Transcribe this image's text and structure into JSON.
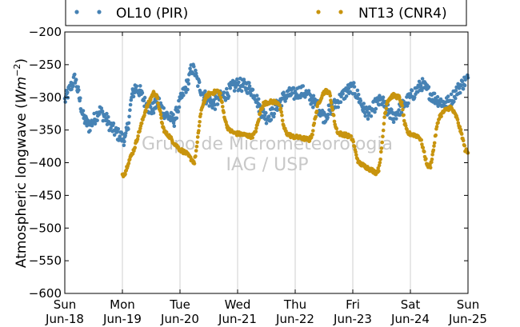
{
  "chart_data": {
    "type": "scatter",
    "ylabel": "Atmospheric longwave",
    "ylabel_unit_base": "W",
    "ylabel_unit_m": "m",
    "ylabel_unit_exp": "−2",
    "ylim": [
      -600,
      -200
    ],
    "yticks": [
      -600,
      -550,
      -500,
      -450,
      -400,
      -350,
      -300,
      -250,
      -200
    ],
    "ytick_labels": [
      "−600",
      "−550",
      "−500",
      "−450",
      "−400",
      "−350",
      "−300",
      "−250",
      "−200"
    ],
    "xlim": [
      0,
      7
    ],
    "xticks": [
      {
        "day": "Sun",
        "date": "Jun-18"
      },
      {
        "day": "Mon",
        "date": "Jun-19"
      },
      {
        "day": "Tue",
        "date": "Jun-20"
      },
      {
        "day": "Wed",
        "date": "Jun-21"
      },
      {
        "day": "Thu",
        "date": "Jun-22"
      },
      {
        "day": "Fri",
        "date": "Jun-23"
      },
      {
        "day": "Sat",
        "date": "Jun-24"
      },
      {
        "day": "Sun",
        "date": "Jun-25"
      }
    ],
    "grid": "vertical",
    "legend_position": "top",
    "watermark": [
      "Grupo de Micrometeorologia",
      "IAG / USP"
    ],
    "series": [
      {
        "name": "OL10 (PIR)",
        "color": "#4682b4",
        "noise": 10,
        "points": [
          [
            0.0,
            -305
          ],
          [
            0.1,
            -285
          ],
          [
            0.18,
            -270
          ],
          [
            0.25,
            -300
          ],
          [
            0.32,
            -330
          ],
          [
            0.42,
            -345
          ],
          [
            0.5,
            -335
          ],
          [
            0.6,
            -320
          ],
          [
            0.7,
            -330
          ],
          [
            0.8,
            -345
          ],
          [
            0.9,
            -355
          ],
          [
            1.0,
            -362
          ],
          [
            1.05,
            -365
          ],
          [
            1.12,
            -330
          ],
          [
            1.16,
            -300
          ],
          [
            1.22,
            -285
          ],
          [
            1.3,
            -290
          ],
          [
            1.4,
            -310
          ],
          [
            1.5,
            -320
          ],
          [
            1.55,
            -315
          ],
          [
            1.62,
            -305
          ],
          [
            1.7,
            -320
          ],
          [
            1.8,
            -330
          ],
          [
            1.9,
            -335
          ],
          [
            1.95,
            -320
          ],
          [
            2.05,
            -295
          ],
          [
            2.15,
            -275
          ],
          [
            2.2,
            -255
          ],
          [
            2.25,
            -260
          ],
          [
            2.3,
            -275
          ],
          [
            2.4,
            -295
          ],
          [
            2.5,
            -305
          ],
          [
            2.6,
            -310
          ],
          [
            2.7,
            -300
          ],
          [
            2.8,
            -295
          ],
          [
            2.9,
            -285
          ],
          [
            3.0,
            -280
          ],
          [
            3.1,
            -282
          ],
          [
            3.2,
            -285
          ],
          [
            3.3,
            -295
          ],
          [
            3.4,
            -320
          ],
          [
            3.5,
            -330
          ],
          [
            3.6,
            -325
          ],
          [
            3.7,
            -310
          ],
          [
            3.8,
            -300
          ],
          [
            3.9,
            -295
          ],
          [
            4.0,
            -295
          ],
          [
            4.1,
            -290
          ],
          [
            4.2,
            -295
          ],
          [
            4.3,
            -305
          ],
          [
            4.4,
            -315
          ],
          [
            4.5,
            -330
          ],
          [
            4.6,
            -320
          ],
          [
            4.7,
            -310
          ],
          [
            4.8,
            -300
          ],
          [
            4.9,
            -290
          ],
          [
            5.0,
            -285
          ],
          [
            5.1,
            -300
          ],
          [
            5.2,
            -320
          ],
          [
            5.3,
            -325
          ],
          [
            5.4,
            -310
          ],
          [
            5.5,
            -305
          ],
          [
            5.6,
            -320
          ],
          [
            5.7,
            -330
          ],
          [
            5.8,
            -320
          ],
          [
            5.9,
            -310
          ],
          [
            6.0,
            -300
          ],
          [
            6.1,
            -290
          ],
          [
            6.2,
            -280
          ],
          [
            6.3,
            -290
          ],
          [
            6.4,
            -300
          ],
          [
            6.5,
            -305
          ],
          [
            6.6,
            -310
          ],
          [
            6.7,
            -305
          ],
          [
            6.8,
            -290
          ],
          [
            6.9,
            -280
          ],
          [
            7.0,
            -270
          ]
        ]
      },
      {
        "name": "NT13 (CNR4)",
        "color": "#c8940e",
        "noise": 3,
        "points": [
          [
            1.0,
            -420
          ],
          [
            1.05,
            -415
          ],
          [
            1.1,
            -400
          ],
          [
            1.2,
            -380
          ],
          [
            1.3,
            -350
          ],
          [
            1.4,
            -320
          ],
          [
            1.5,
            -300
          ],
          [
            1.55,
            -292
          ],
          [
            1.6,
            -300
          ],
          [
            1.65,
            -320
          ],
          [
            1.7,
            -345
          ],
          [
            1.75,
            -355
          ],
          [
            1.8,
            -358
          ],
          [
            1.9,
            -370
          ],
          [
            2.0,
            -380
          ],
          [
            2.1,
            -385
          ],
          [
            2.15,
            -390
          ],
          [
            2.2,
            -395
          ],
          [
            2.25,
            -400
          ],
          [
            2.3,
            -370
          ],
          [
            2.35,
            -330
          ],
          [
            2.4,
            -310
          ],
          [
            2.45,
            -300
          ],
          [
            2.5,
            -295
          ],
          [
            2.6,
            -292
          ],
          [
            2.65,
            -290
          ],
          [
            2.7,
            -295
          ],
          [
            2.75,
            -320
          ],
          [
            2.8,
            -340
          ],
          [
            2.85,
            -350
          ],
          [
            2.95,
            -355
          ],
          [
            3.1,
            -357
          ],
          [
            3.25,
            -360
          ],
          [
            3.3,
            -355
          ],
          [
            3.35,
            -340
          ],
          [
            3.4,
            -320
          ],
          [
            3.45,
            -310
          ],
          [
            3.55,
            -307
          ],
          [
            3.7,
            -307
          ],
          [
            3.75,
            -320
          ],
          [
            3.8,
            -345
          ],
          [
            3.85,
            -355
          ],
          [
            3.95,
            -360
          ],
          [
            4.1,
            -362
          ],
          [
            4.25,
            -365
          ],
          [
            4.3,
            -355
          ],
          [
            4.35,
            -330
          ],
          [
            4.4,
            -310
          ],
          [
            4.45,
            -300
          ],
          [
            4.5,
            -292
          ],
          [
            4.55,
            -290
          ],
          [
            4.6,
            -295
          ],
          [
            4.65,
            -320
          ],
          [
            4.7,
            -345
          ],
          [
            4.75,
            -355
          ],
          [
            4.85,
            -357
          ],
          [
            4.95,
            -360
          ],
          [
            5.0,
            -365
          ],
          [
            5.05,
            -385
          ],
          [
            5.1,
            -400
          ],
          [
            5.2,
            -405
          ],
          [
            5.3,
            -410
          ],
          [
            5.4,
            -415
          ],
          [
            5.45,
            -410
          ],
          [
            5.5,
            -380
          ],
          [
            5.55,
            -330
          ],
          [
            5.6,
            -305
          ],
          [
            5.7,
            -297
          ],
          [
            5.8,
            -300
          ],
          [
            5.85,
            -310
          ],
          [
            5.9,
            -340
          ],
          [
            5.95,
            -355
          ],
          [
            6.05,
            -357
          ],
          [
            6.15,
            -360
          ],
          [
            6.2,
            -370
          ],
          [
            6.25,
            -390
          ],
          [
            6.3,
            -405
          ],
          [
            6.35,
            -405
          ],
          [
            6.4,
            -380
          ],
          [
            6.45,
            -350
          ],
          [
            6.5,
            -330
          ],
          [
            6.6,
            -320
          ],
          [
            6.7,
            -315
          ],
          [
            6.8,
            -330
          ],
          [
            6.85,
            -345
          ],
          [
            6.9,
            -360
          ],
          [
            6.95,
            -380
          ],
          [
            7.0,
            -385
          ]
        ]
      }
    ]
  }
}
